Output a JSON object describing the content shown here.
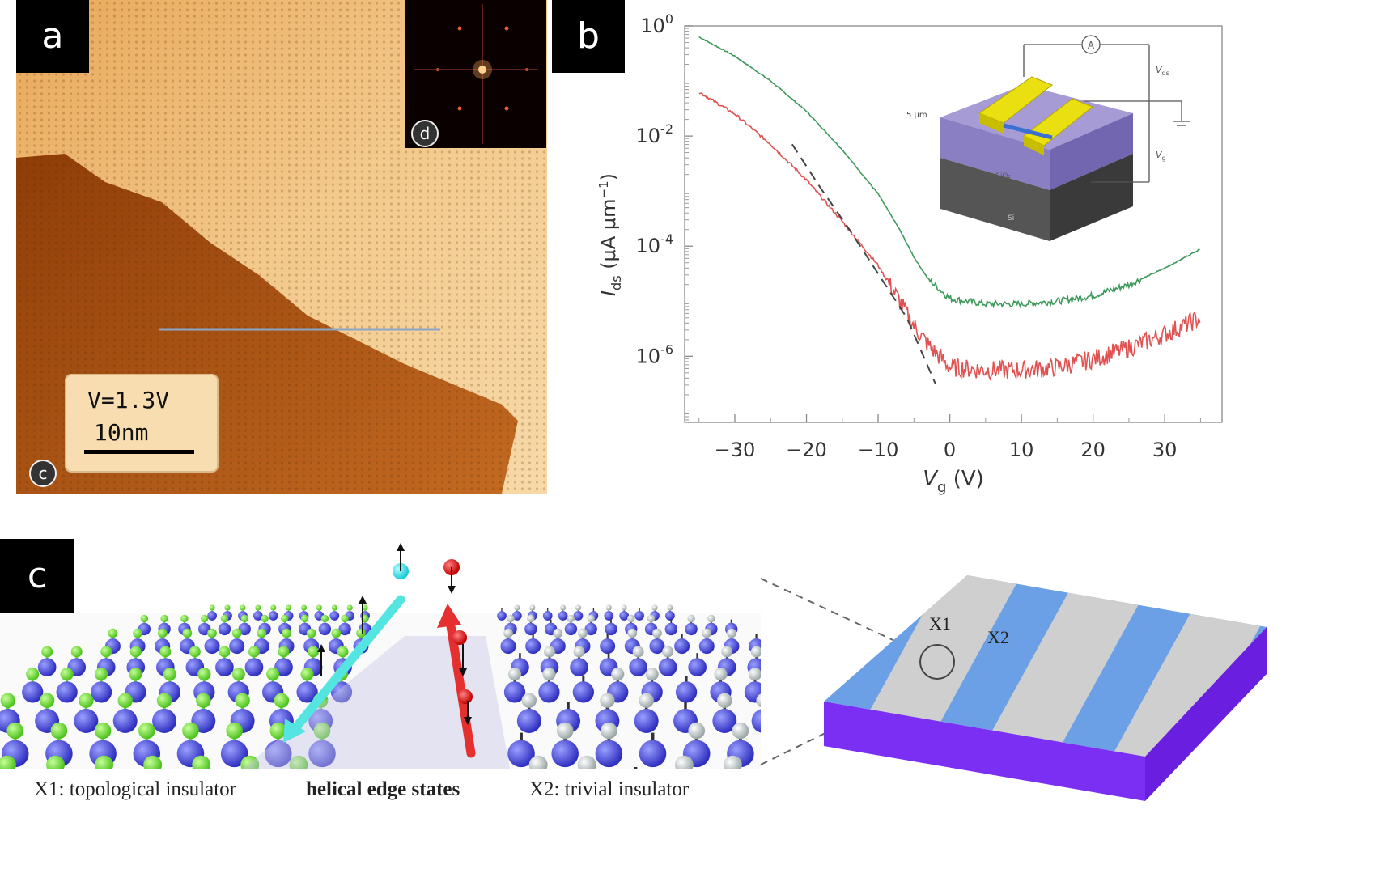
{
  "panels": {
    "a": {
      "label": "a"
    },
    "b": {
      "label": "b"
    },
    "c": {
      "label": "c"
    }
  },
  "stm": {
    "voltage_text": "V=1.3V",
    "scale_text": "10nm",
    "sub_label_c": "c",
    "sub_label_d": "d",
    "colors": {
      "upper_terrace": "#f0c27e",
      "lower_terrace": "#b5611c",
      "line_cut": "#8aa6c8"
    }
  },
  "chart_data": {
    "type": "line",
    "x_values_common": "Vg (V)",
    "xlabel_main": "V",
    "xlabel_sub": "g",
    "xlabel_unit": " (V)",
    "ylabel_main": "I",
    "ylabel_sub": "ds",
    "ylabel_unit": " (μA μm",
    "ylabel_exp": "−1",
    "ylabel_close": ")",
    "x_ticks": [
      -30,
      -20,
      -10,
      0,
      10,
      20,
      30
    ],
    "x_tick_labels": [
      "−30",
      "−20",
      "−10",
      "0",
      "10",
      "20",
      "30"
    ],
    "xlim": [
      -37,
      38
    ],
    "ylim_log10": [
      -7.2,
      0
    ],
    "y_ticks_log10": [
      0,
      -2,
      -4,
      -6
    ],
    "y_tick_base": "10",
    "y_tick_exps": [
      "0",
      "-2",
      "-4",
      "-6"
    ],
    "log_scale_y": true,
    "series": [
      {
        "color": "#3d9a5a",
        "x": [
          -35,
          -30,
          -25,
          -20,
          -15,
          -10,
          -7,
          -5,
          -3,
          0,
          5,
          10,
          15,
          20,
          25,
          30,
          35
        ],
        "log10_y": [
          -0.2,
          -0.55,
          -1.0,
          -1.55,
          -2.25,
          -3.05,
          -3.7,
          -4.2,
          -4.6,
          -4.95,
          -5.05,
          -5.05,
          -5.0,
          -4.9,
          -4.7,
          -4.4,
          -4.05
        ]
      },
      {
        "color": "#e05252",
        "x": [
          -35,
          -30,
          -25,
          -20,
          -15,
          -10,
          -7,
          -5,
          -3,
          0,
          5,
          10,
          15,
          20,
          25,
          30,
          35
        ],
        "log10_y": [
          -1.2,
          -1.6,
          -2.15,
          -2.8,
          -3.55,
          -4.35,
          -5.0,
          -5.45,
          -5.8,
          -6.2,
          -6.25,
          -6.25,
          -6.2,
          -6.05,
          -5.85,
          -5.6,
          -5.3
        ]
      },
      {
        "color": "#444444",
        "dashed": true,
        "x": [
          -22,
          -18,
          -14,
          -10,
          -6,
          -2
        ],
        "log10_y": [
          -2.15,
          -2.95,
          -3.7,
          -4.5,
          -5.3,
          -6.5
        ]
      }
    ],
    "inset": {
      "ammeter": "A",
      "vds_label": "V",
      "vds_sub": "ds",
      "vg_label": "V",
      "vg_sub": "g",
      "scale_label": "5 μm",
      "layer_label": "SiO₂",
      "substrate_label": "Si"
    }
  },
  "schematic": {
    "x1_label": "X1",
    "x2_label": "X2",
    "stripe_colors": {
      "blue": "#6ca0e6",
      "gray": "#cfcfcf",
      "base": "#7a2ff2"
    }
  },
  "captions": {
    "left": "X1: topological insulator",
    "middle": "helical edge states",
    "right": "X2: trivial insulator"
  }
}
